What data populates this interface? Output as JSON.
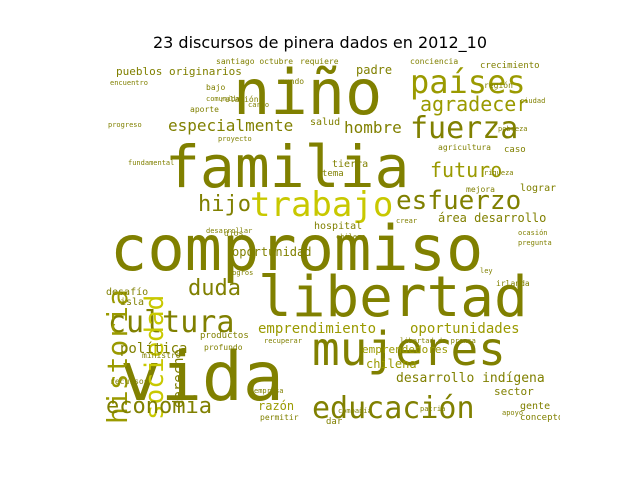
{
  "title": "23 discursos de pinera dados en 2012_10",
  "palette": {
    "dark": "#808000",
    "mid": "#9a9a00",
    "light": "#c8c800"
  },
  "words": [
    {
      "text": "compromiso",
      "tone": "dark"
    },
    {
      "text": "familia",
      "tone": "dark"
    },
    {
      "text": "niño",
      "tone": "dark"
    },
    {
      "text": "vida",
      "tone": "dark"
    },
    {
      "text": "libertad",
      "tone": "dark"
    },
    {
      "text": "mujeres",
      "tone": "dark"
    },
    {
      "text": "países",
      "tone": "mid"
    },
    {
      "text": "trabajo",
      "tone": "light"
    },
    {
      "text": "educación",
      "tone": "dark"
    },
    {
      "text": "cultura",
      "tone": "dark"
    },
    {
      "text": "fuerza",
      "tone": "dark"
    },
    {
      "text": "esfuerzo",
      "tone": "dark"
    },
    {
      "text": "historia",
      "tone": "mid"
    },
    {
      "text": "sociedad",
      "tone": "light"
    },
    {
      "text": "economía",
      "tone": "dark"
    },
    {
      "text": "agradecer",
      "tone": "mid"
    },
    {
      "text": "futuro",
      "tone": "mid"
    },
    {
      "text": "hijo",
      "tone": "dark"
    },
    {
      "text": "duda",
      "tone": "dark"
    },
    {
      "text": "hombre",
      "tone": "dark"
    },
    {
      "text": "especialmente",
      "tone": "dark"
    },
    {
      "text": "derecho",
      "tone": "dark"
    },
    {
      "text": "emprendimiento",
      "tone": "mid"
    },
    {
      "text": "oportunidades",
      "tone": "mid"
    },
    {
      "text": "desarrollo indígena",
      "tone": "dark"
    },
    {
      "text": "política",
      "tone": "dark"
    },
    {
      "text": "oportunidad",
      "tone": "dark"
    },
    {
      "text": "área desarrollo",
      "tone": "dark"
    },
    {
      "text": "pueblos originarios",
      "tone": "dark"
    },
    {
      "text": "razón",
      "tone": "mid"
    },
    {
      "text": "chilena",
      "tone": "mid"
    },
    {
      "text": "emprendedores",
      "tone": "mid"
    },
    {
      "text": "sector",
      "tone": "dark"
    },
    {
      "text": "salud",
      "tone": "dark"
    },
    {
      "text": "desafío",
      "tone": "dark"
    },
    {
      "text": "isla",
      "tone": "dark"
    },
    {
      "text": "gente",
      "tone": "dark"
    },
    {
      "text": "lograr",
      "tone": "dark"
    },
    {
      "text": "hospital",
      "tone": "dark"
    },
    {
      "text": "padre",
      "tone": "dark"
    },
    {
      "text": "tierra",
      "tone": "dark"
    },
    {
      "text": "tema",
      "tone": "dark"
    },
    {
      "text": "crecimiento",
      "tone": "dark"
    },
    {
      "text": "región",
      "tone": "dark"
    },
    {
      "text": "concepto",
      "tone": "dark"
    },
    {
      "text": "dios",
      "tone": "dark"
    },
    {
      "text": "bajo",
      "tone": "dark"
    },
    {
      "text": "irlanda",
      "tone": "dark"
    },
    {
      "text": "productos",
      "tone": "dark"
    },
    {
      "text": "ministro",
      "tone": "dark"
    },
    {
      "text": "recursos",
      "tone": "dark"
    },
    {
      "text": "profundo",
      "tone": "dark"
    },
    {
      "text": "permitir",
      "tone": "dark"
    },
    {
      "text": "dar",
      "tone": "dark"
    },
    {
      "text": "agricultura",
      "tone": "dark"
    },
    {
      "text": "mejora",
      "tone": "dark"
    },
    {
      "text": "caso",
      "tone": "dark"
    },
    {
      "text": "santiago octubre",
      "tone": "dark"
    },
    {
      "text": "requiere",
      "tone": "dark"
    },
    {
      "text": "relación",
      "tone": "dark"
    },
    {
      "text": "aporte",
      "tone": "dark"
    },
    {
      "text": "conciencia",
      "tone": "dark"
    },
    {
      "text": "mundo",
      "tone": "dark"
    },
    {
      "text": "encuentro",
      "tone": "dark"
    },
    {
      "text": "libertad de prensa",
      "tone": "dark"
    },
    {
      "text": "empresa",
      "tone": "dark"
    },
    {
      "text": "progreso",
      "tone": "dark"
    },
    {
      "text": "proyecto",
      "tone": "dark"
    },
    {
      "text": "chileno",
      "tone": "dark"
    },
    {
      "text": "desarrollar",
      "tone": "dark"
    },
    {
      "text": "cargo",
      "tone": "dark"
    },
    {
      "text": "comunidad",
      "tone": "dark"
    },
    {
      "text": "crear",
      "tone": "dark"
    },
    {
      "text": "recuperar",
      "tone": "dark"
    },
    {
      "text": "ley",
      "tone": "dark"
    },
    {
      "text": "ciudad",
      "tone": "dark"
    },
    {
      "text": "pobreza",
      "tone": "dark"
    },
    {
      "text": "riqueza",
      "tone": "dark"
    },
    {
      "text": "logros",
      "tone": "dark"
    },
    {
      "text": "compañía",
      "tone": "dark"
    },
    {
      "text": "patria",
      "tone": "dark"
    },
    {
      "text": "apoyo",
      "tone": "dark"
    },
    {
      "text": "fundamental",
      "tone": "dark"
    },
    {
      "text": "ocasión",
      "tone": "dark"
    },
    {
      "text": "pregunta",
      "tone": "dark"
    }
  ]
}
